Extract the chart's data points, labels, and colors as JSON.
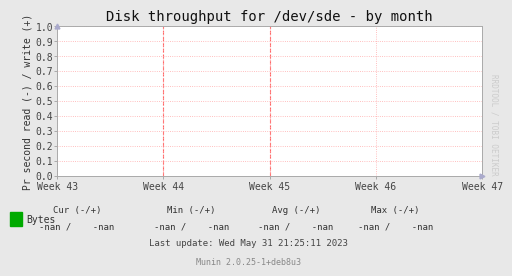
{
  "title": "Disk throughput for /dev/sde - by month",
  "ylabel": "Pr second read (-) / write (+)",
  "background_color": "#e8e8e8",
  "plot_bg_color": "#ffffff",
  "grid_color": "#ffaaaa",
  "ylim": [
    0.0,
    1.0
  ],
  "yticks": [
    0.0,
    0.1,
    0.2,
    0.3,
    0.4,
    0.5,
    0.6,
    0.7,
    0.8,
    0.9,
    1.0
  ],
  "xtick_labels": [
    "Week 43",
    "Week 44",
    "Week 45",
    "Week 46",
    "Week 47"
  ],
  "xtick_positions": [
    0.0,
    0.25,
    0.5,
    0.75,
    1.0
  ],
  "vline_positions": [
    0.25,
    0.5
  ],
  "vline_color": "#ff6666",
  "watermark": "RRDTOOL / TOBI OETIKER",
  "legend_label": "Bytes",
  "legend_color": "#00aa00",
  "border_color": "#aaaaaa",
  "title_fontsize": 10,
  "tick_fontsize": 7,
  "ylabel_fontsize": 7,
  "watermark_fontsize": 5.5,
  "footer_fontsize": 6.5,
  "munin_fontsize": 6,
  "footer_cur": "Cur (-/+)",
  "footer_min": "Min (-/+)",
  "footer_avg": "Avg (-/+)",
  "footer_max": "Max (-/+)",
  "footer_cur_val": "-nan /    -nan",
  "footer_min_val": "-nan /    -nan",
  "footer_avg_val": "-nan /    -nan",
  "footer_max_val": "-nan /    -nan",
  "footer_update": "Last update: Wed May 31 21:25:11 2023",
  "footer_munin": "Munin 2.0.25-1+deb8u3"
}
